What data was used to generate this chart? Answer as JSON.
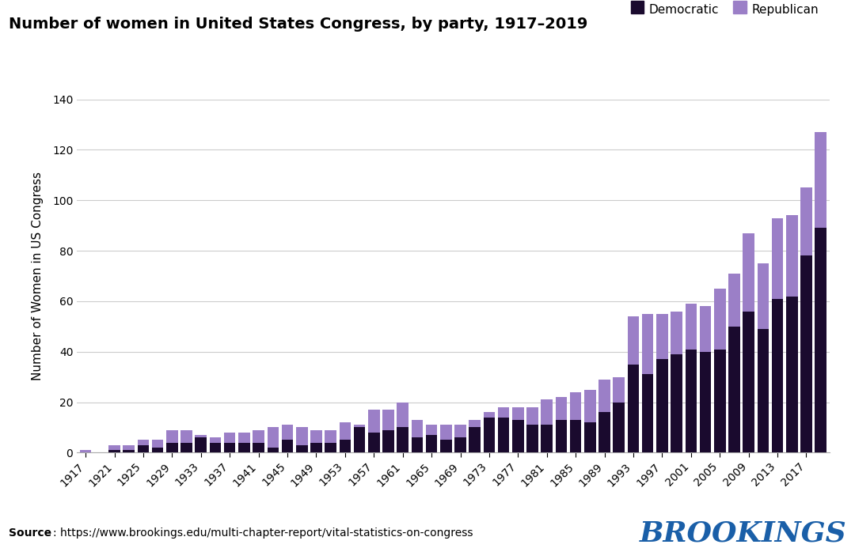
{
  "title": "Number of women in United States Congress, by party, 1917–2019",
  "ylabel": "Number of Women in US Congress",
  "source_label": "Source",
  "source_url": ": https://www.brookings.edu/multi-chapter-report/vital-statistics-on-congress",
  "brookings_text": "BROOKINGS",
  "years": [
    1917,
    1919,
    1921,
    1923,
    1925,
    1927,
    1929,
    1931,
    1933,
    1935,
    1937,
    1939,
    1941,
    1943,
    1945,
    1947,
    1949,
    1951,
    1953,
    1955,
    1957,
    1959,
    1961,
    1963,
    1965,
    1967,
    1969,
    1971,
    1973,
    1975,
    1977,
    1979,
    1981,
    1983,
    1985,
    1987,
    1989,
    1991,
    1993,
    1995,
    1997,
    1999,
    2001,
    2003,
    2005,
    2007,
    2009,
    2011,
    2013,
    2015,
    2017,
    2019
  ],
  "democratic": [
    0,
    0,
    1,
    1,
    3,
    2,
    4,
    4,
    6,
    4,
    4,
    4,
    4,
    2,
    5,
    3,
    4,
    4,
    5,
    10,
    8,
    9,
    10,
    6,
    7,
    5,
    6,
    10,
    14,
    14,
    13,
    11,
    11,
    13,
    13,
    12,
    16,
    20,
    35,
    31,
    37,
    39,
    41,
    40,
    41,
    50,
    56,
    49,
    61,
    62,
    78,
    89
  ],
  "republican": [
    1,
    0,
    2,
    2,
    2,
    3,
    5,
    5,
    1,
    2,
    4,
    4,
    5,
    8,
    6,
    7,
    5,
    5,
    7,
    1,
    9,
    8,
    10,
    7,
    4,
    6,
    5,
    3,
    2,
    4,
    5,
    7,
    10,
    9,
    11,
    13,
    13,
    10,
    19,
    24,
    18,
    17,
    18,
    18,
    24,
    21,
    31,
    26,
    32,
    32,
    27,
    38
  ],
  "democratic_color": "#1a0a2e",
  "republican_color": "#9b7fc7",
  "ylim": [
    0,
    140
  ],
  "yticks": [
    0,
    20,
    40,
    60,
    80,
    100,
    120,
    140
  ],
  "background_color": "#ffffff",
  "grid_color": "#cccccc",
  "title_fontsize": 14,
  "axis_fontsize": 11,
  "tick_fontsize": 10,
  "bar_width": 0.8,
  "legend_marker_size": 12
}
